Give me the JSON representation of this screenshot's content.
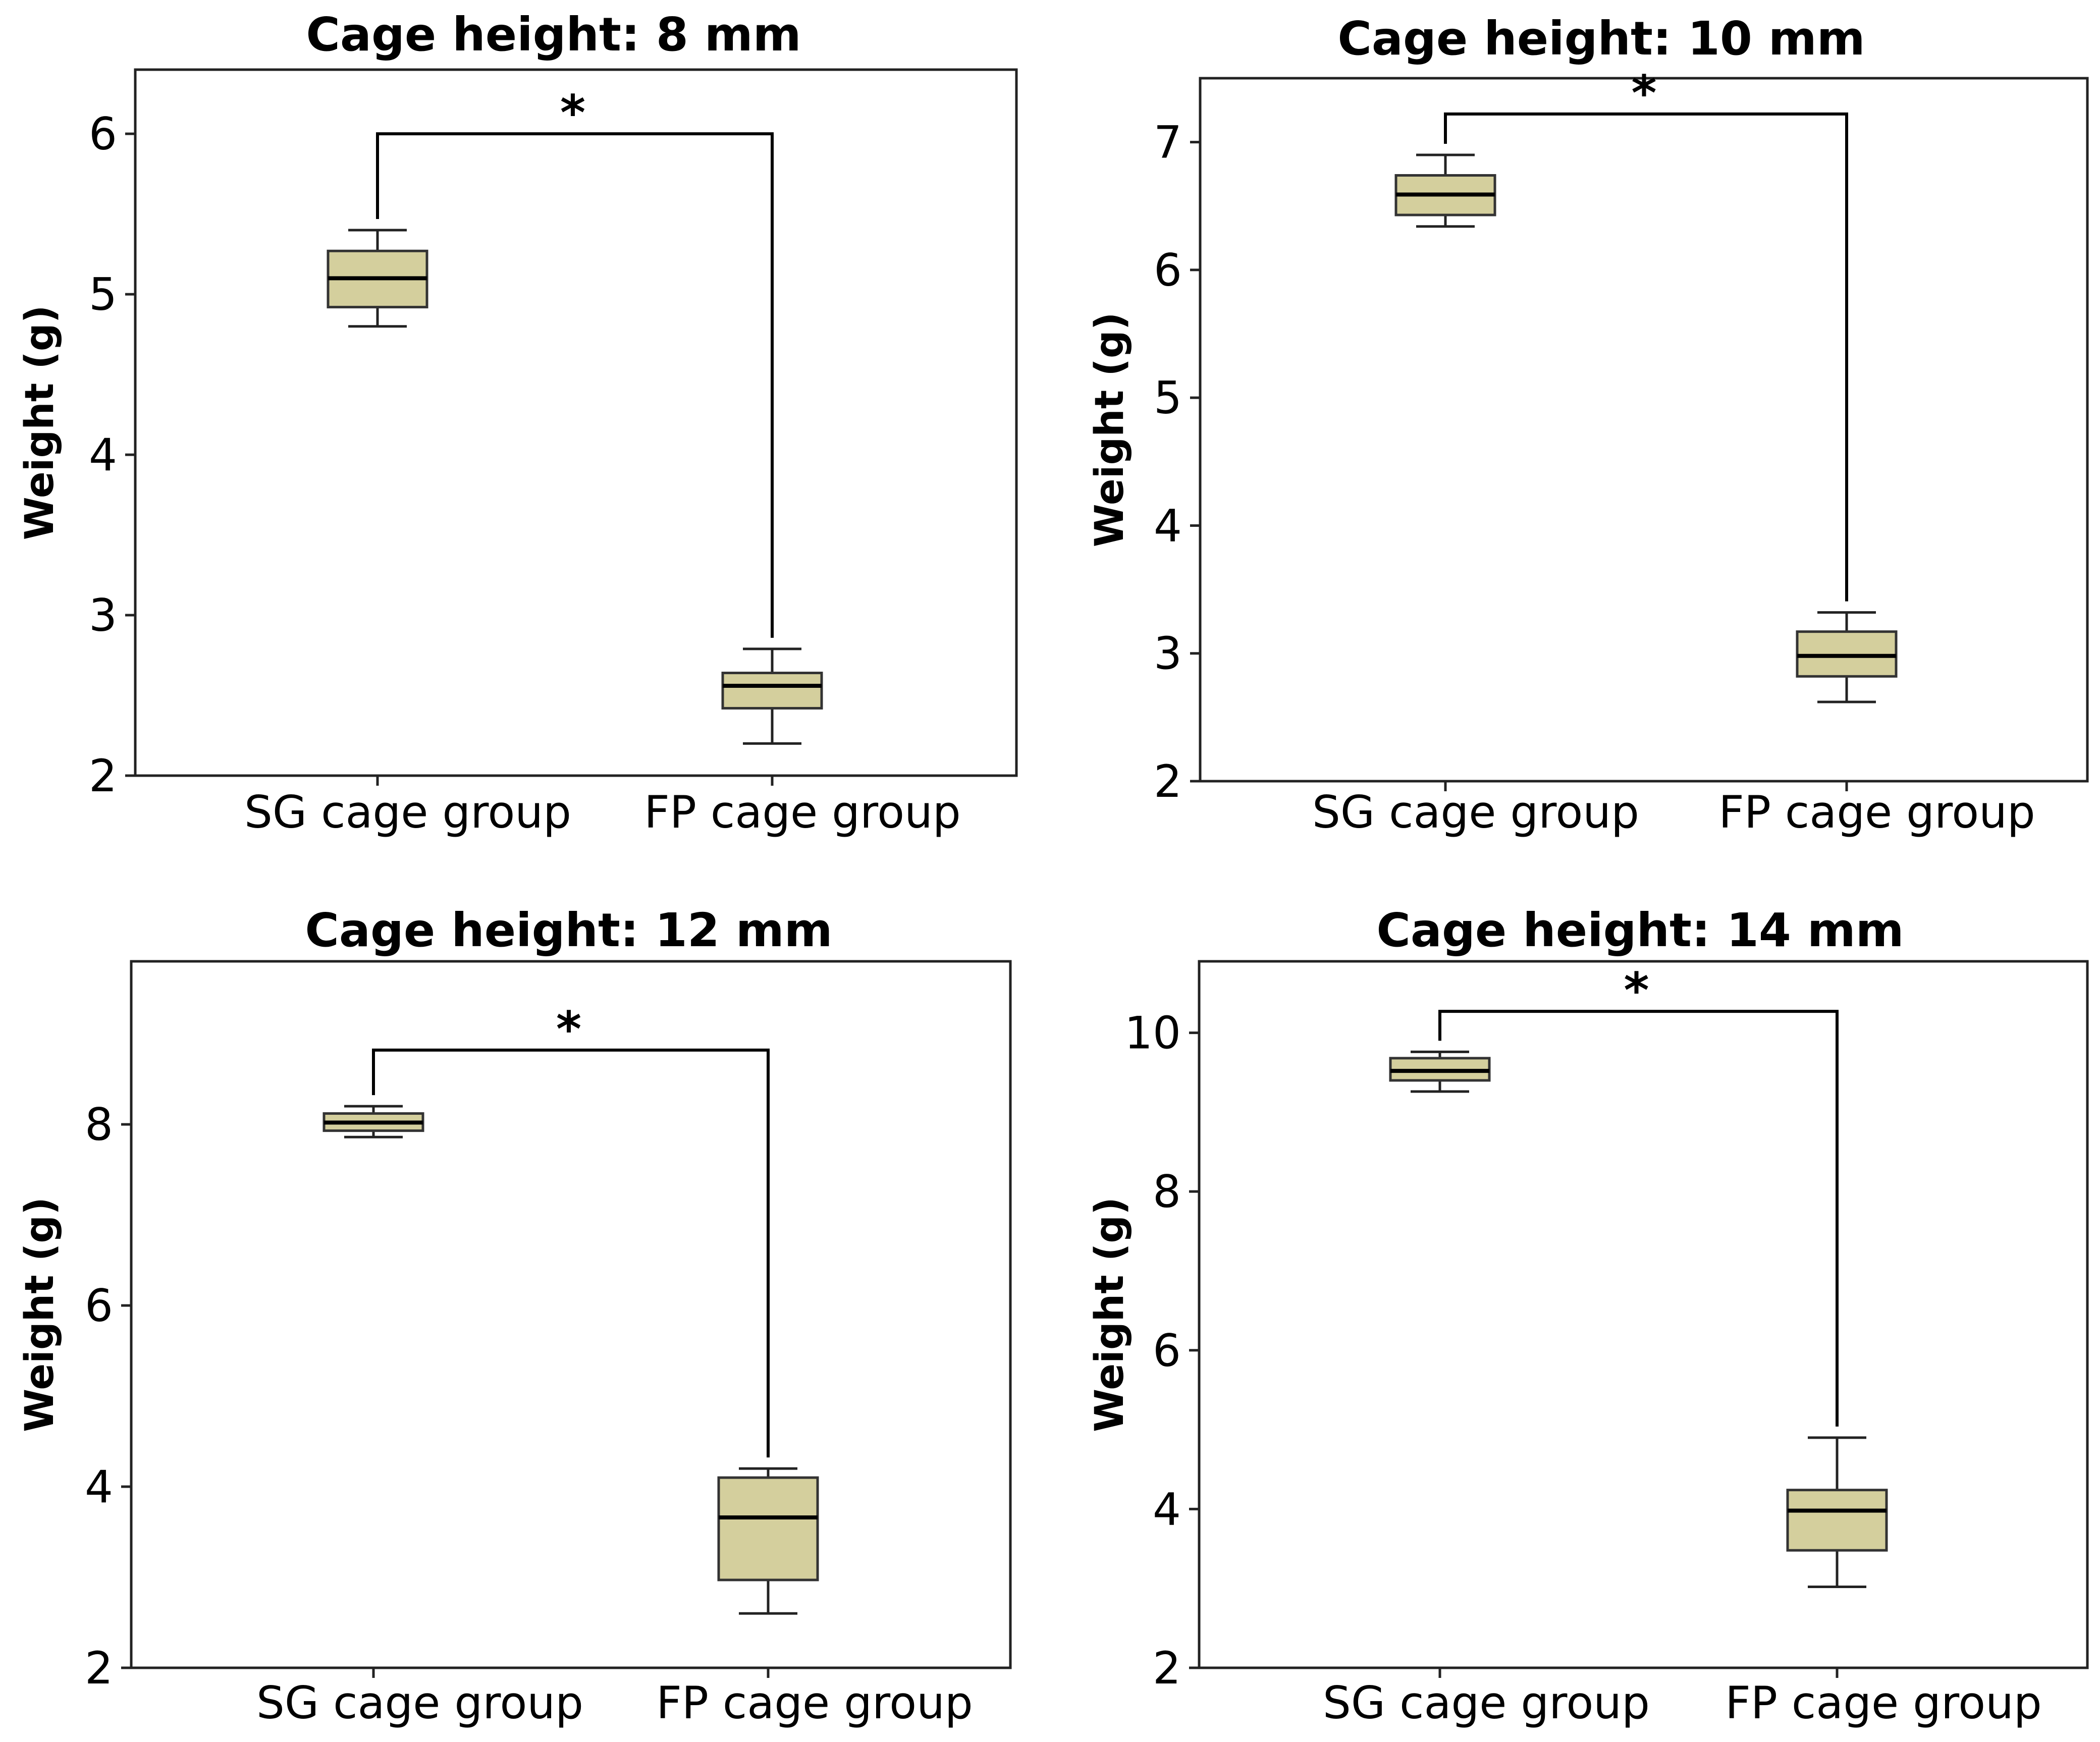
{
  "box_fill": "#d4cf9d",
  "chart_data": [
    {
      "type": "box",
      "title": "Cage height: 8 mm",
      "ylabel": "Weight (g)",
      "ylim": [
        2,
        6.4
      ],
      "yticks": [
        2,
        3,
        4,
        5,
        6
      ],
      "categories": [
        "SG cage group",
        "FP cage group"
      ],
      "boxes": [
        {
          "min": 4.8,
          "q1": 4.92,
          "median": 5.1,
          "q3": 5.27,
          "max": 5.4
        },
        {
          "min": 2.2,
          "q1": 2.42,
          "median": 2.56,
          "q3": 2.64,
          "max": 2.79
        }
      ],
      "significance": {
        "label": "*",
        "y": 6.0
      }
    },
    {
      "type": "box",
      "title": "Cage height: 10 mm",
      "ylabel": "Weight (g)",
      "ylim": [
        2,
        7.5
      ],
      "yticks": [
        2,
        3,
        4,
        5,
        6,
        7
      ],
      "categories": [
        "SG cage group",
        "FP cage group"
      ],
      "boxes": [
        {
          "min": 6.34,
          "q1": 6.43,
          "median": 6.59,
          "q3": 6.74,
          "max": 6.9
        },
        {
          "min": 2.62,
          "q1": 2.82,
          "median": 2.98,
          "q3": 3.17,
          "max": 3.32
        },
        {
          "placeholder": true
        }
      ],
      "significance": {
        "label": "*",
        "y": 7.22
      }
    },
    {
      "type": "box",
      "title": "Cage height: 12 mm",
      "ylabel": "Weight (g)",
      "ylim": [
        2,
        9.8
      ],
      "yticks": [
        2,
        4,
        6,
        8
      ],
      "categories": [
        "SG cage group",
        "FP cage group"
      ],
      "boxes": [
        {
          "min": 7.86,
          "q1": 7.93,
          "median": 8.02,
          "q3": 8.12,
          "max": 8.2
        },
        {
          "min": 2.6,
          "q1": 2.97,
          "median": 3.66,
          "q3": 4.1,
          "max": 4.2
        }
      ],
      "significance": {
        "label": "*",
        "y": 8.82
      }
    },
    {
      "type": "box",
      "title": "Cage height: 14 mm",
      "ylabel": "Weight (g)",
      "ylim": [
        2,
        10.9
      ],
      "yticks": [
        2,
        4,
        6,
        8,
        10
      ],
      "categories": [
        "SG cage group",
        "FP cage group"
      ],
      "boxes": [
        {
          "min": 9.26,
          "q1": 9.4,
          "median": 9.52,
          "q3": 9.68,
          "max": 9.76
        },
        {
          "min": 3.02,
          "q1": 3.48,
          "median": 3.98,
          "q3": 4.24,
          "max": 4.9
        }
      ],
      "significance": {
        "label": "*",
        "y": 10.27
      }
    }
  ]
}
